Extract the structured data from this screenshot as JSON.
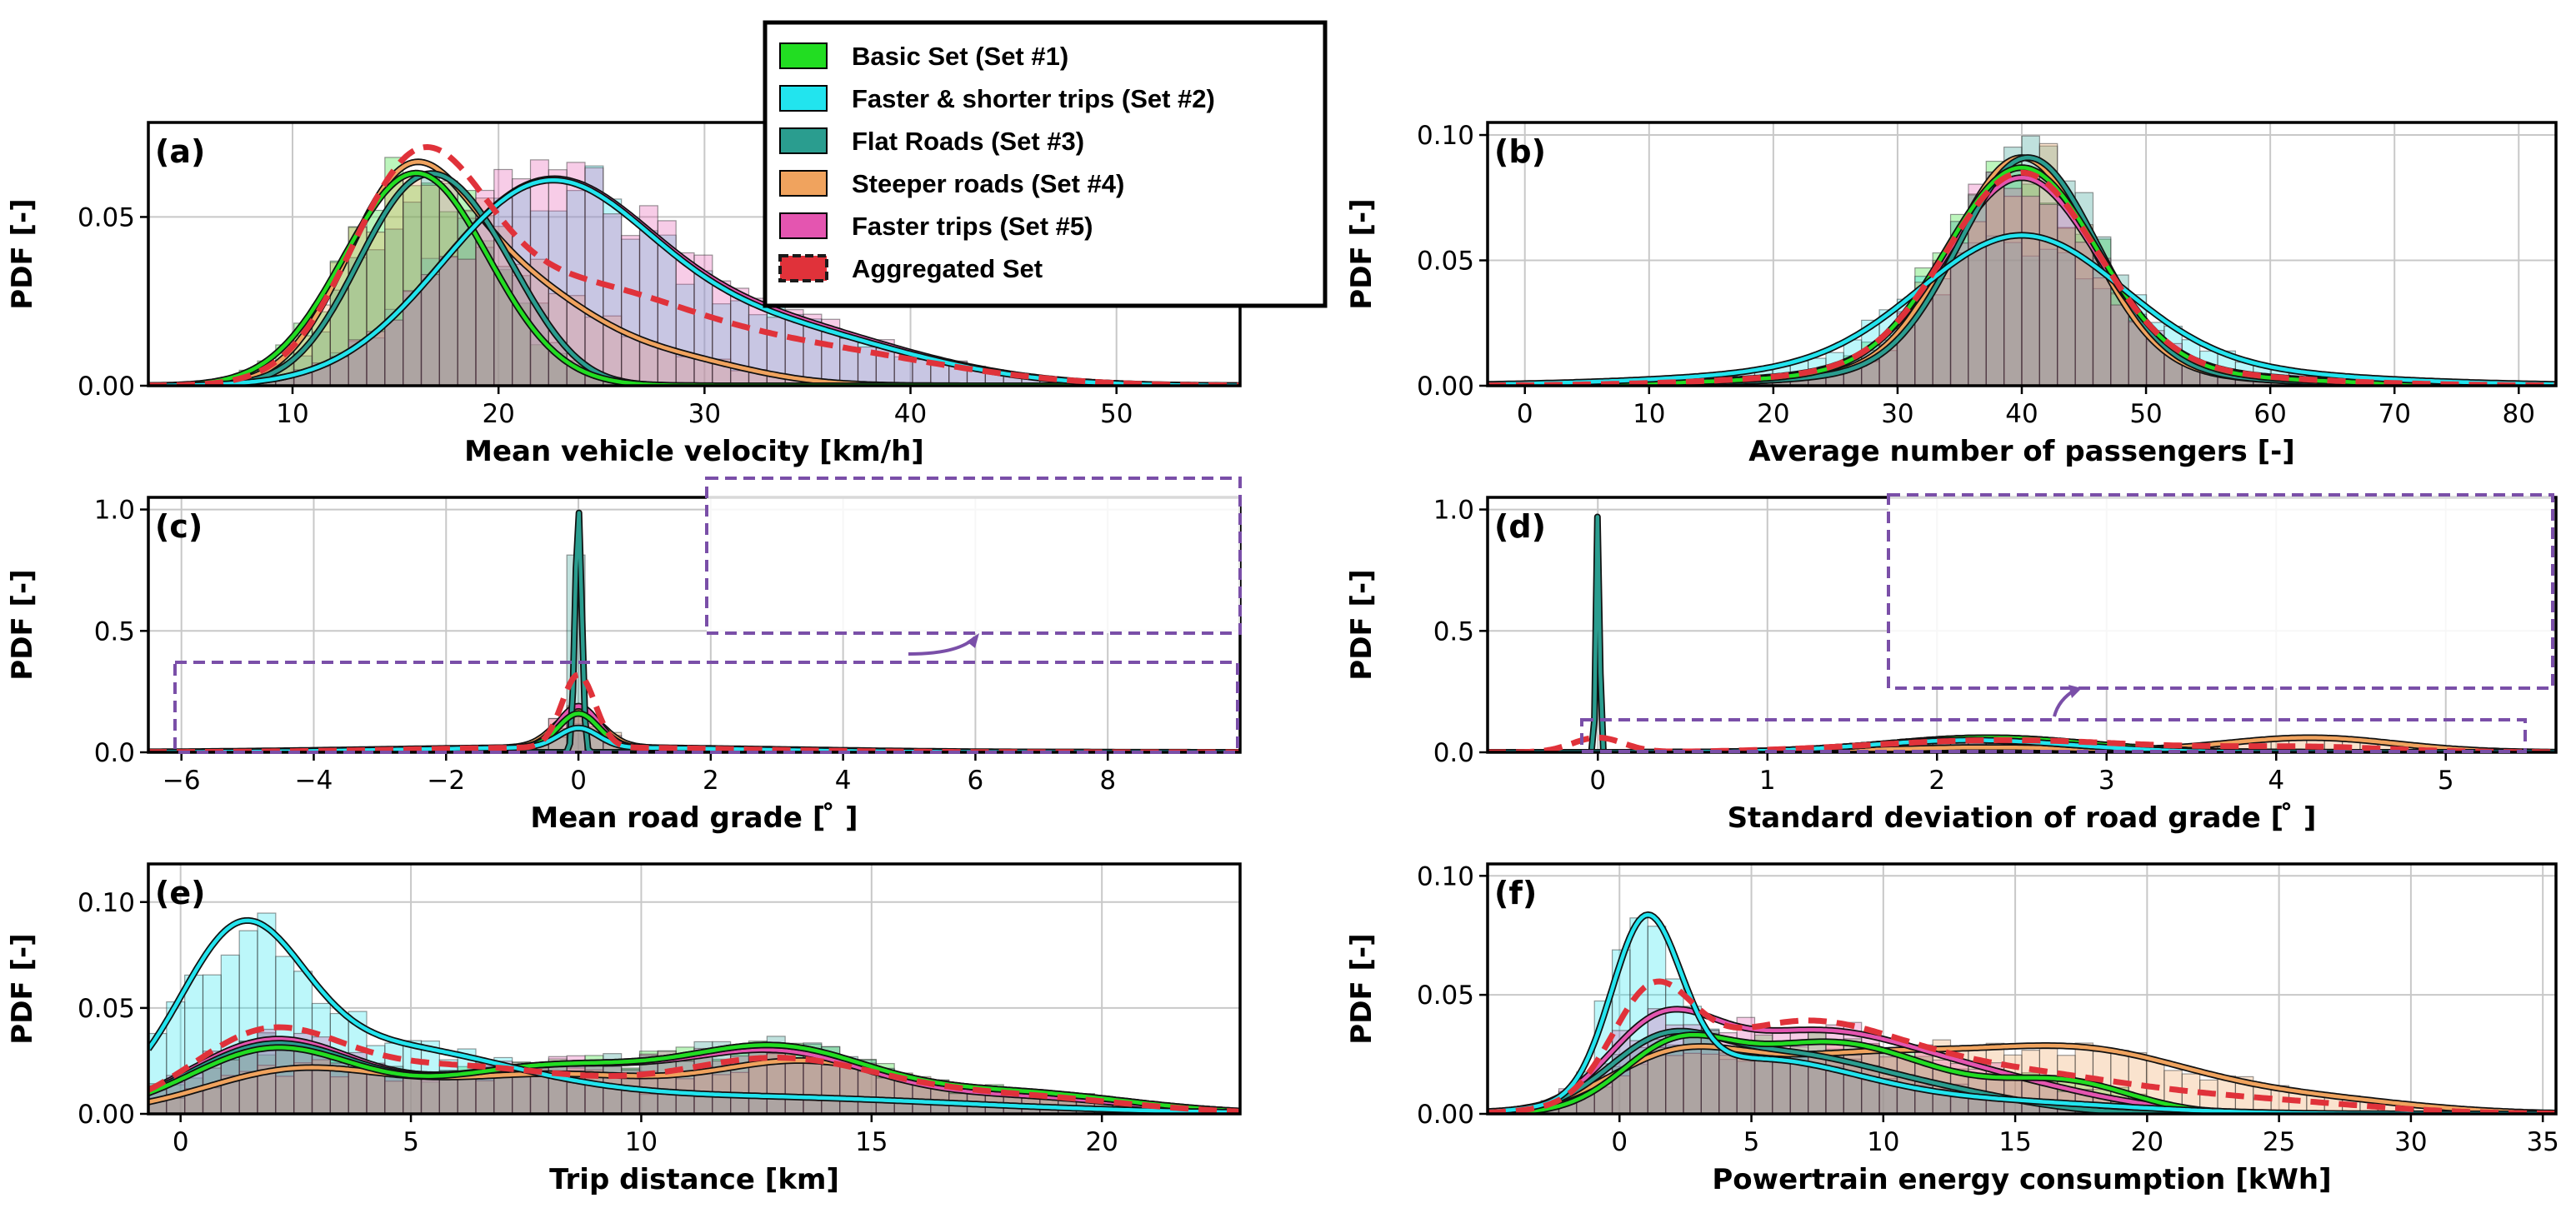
{
  "colors": {
    "set1": "#22dd22",
    "set2": "#22e4ee",
    "set3": "#2a9d8f",
    "set4": "#f0a35e",
    "set5": "#e455b0",
    "agg": "#e0323a",
    "inset": "#7a4fa8"
  },
  "legend": [
    {
      "key": "set1",
      "label": "Basic Set (Set #1)"
    },
    {
      "key": "set2",
      "label": "Faster & shorter trips (Set #2)"
    },
    {
      "key": "set3",
      "label": "Flat Roads (Set #3)"
    },
    {
      "key": "set4",
      "label": "Steeper roads (Set #4)"
    },
    {
      "key": "set5",
      "label": "Faster trips (Set #5)"
    },
    {
      "key": "agg",
      "label": "Aggregated Set"
    }
  ],
  "chart_data": [
    {
      "id": "a",
      "panel_label": "(a)",
      "type": "area",
      "xlabel": "Mean vehicle velocity [km/h]",
      "ylabel": "PDF [-]",
      "xlim": [
        3,
        56
      ],
      "ylim": [
        0,
        0.078
      ],
      "xticks": [
        10,
        20,
        30,
        40,
        50
      ],
      "xtick_labels": [
        "10",
        "20",
        "30",
        "40",
        "50"
      ],
      "yticks": [
        0,
        0.05
      ],
      "ytick_labels": [
        "0.00",
        "0.05"
      ],
      "series": [
        {
          "key": "set1",
          "name": "Basic Set (Set #1)",
          "peaks": [
            {
              "m": 16,
              "s": 3.5,
              "a": 0.063
            }
          ]
        },
        {
          "key": "set2",
          "name": "Faster & shorter trips (Set #2)",
          "peaks": [
            {
              "m": 22,
              "s": 5.0,
              "a": 0.054
            },
            {
              "m": 32,
              "s": 7.0,
              "a": 0.018
            }
          ]
        },
        {
          "key": "set3",
          "name": "Flat Roads (Set #3)",
          "peaks": [
            {
              "m": 16,
              "s": 3.0,
              "a": 0.056
            },
            {
              "m": 20,
              "s": 2.5,
              "a": 0.02
            }
          ]
        },
        {
          "key": "set4",
          "name": "Steeper roads (Set #4)",
          "peaks": [
            {
              "m": 15.5,
              "s": 3.0,
              "a": 0.058
            },
            {
              "m": 21,
              "s": 3.5,
              "a": 0.025
            },
            {
              "m": 28,
              "s": 4.0,
              "a": 0.008
            }
          ]
        },
        {
          "key": "set5",
          "name": "Faster trips (Set #5)",
          "peaks": [
            {
              "m": 22,
              "s": 5.0,
              "a": 0.054
            },
            {
              "m": 32,
              "s": 7.0,
              "a": 0.019
            }
          ]
        },
        {
          "key": "agg",
          "name": "Aggregated Set",
          "peaks": [
            {
              "m": 16,
              "s": 3.2,
              "a": 0.058
            },
            {
              "m": 23,
              "s": 5.5,
              "a": 0.026
            },
            {
              "m": 34,
              "s": 7.0,
              "a": 0.011
            }
          ]
        }
      ]
    },
    {
      "id": "b",
      "panel_label": "(b)",
      "type": "area",
      "xlabel": "Average number of passengers [-]",
      "ylabel": "PDF [-]",
      "xlim": [
        -3,
        83
      ],
      "ylim": [
        0,
        0.105
      ],
      "xticks": [
        0,
        10,
        20,
        30,
        40,
        50,
        60,
        70,
        80
      ],
      "xtick_labels": [
        "0",
        "10",
        "20",
        "30",
        "40",
        "50",
        "60",
        "70",
        "80"
      ],
      "yticks": [
        0,
        0.05,
        0.1
      ],
      "ytick_labels": [
        "0.00",
        "0.05",
        "0.10"
      ],
      "series": [
        {
          "key": "set1",
          "name": "Basic Set (Set #1)",
          "peaks": [
            {
              "m": 40,
              "s": 6,
              "a": 0.08
            },
            {
              "m": 40,
              "s": 15,
              "a": 0.007
            }
          ]
        },
        {
          "key": "set2",
          "name": "Faster & shorter trips (Set #2)",
          "peaks": [
            {
              "m": 40,
              "s": 8,
              "a": 0.05
            },
            {
              "m": 40,
              "s": 18,
              "a": 0.01
            }
          ]
        },
        {
          "key": "set3",
          "name": "Flat Roads (Set #3)",
          "peaks": [
            {
              "m": 40.5,
              "s": 5.5,
              "a": 0.085
            },
            {
              "m": 40,
              "s": 14,
              "a": 0.006
            }
          ]
        },
        {
          "key": "set4",
          "name": "Steeper roads (Set #4)",
          "peaks": [
            {
              "m": 40,
              "s": 5.5,
              "a": 0.085
            },
            {
              "m": 40,
              "s": 14,
              "a": 0.006
            }
          ]
        },
        {
          "key": "set5",
          "name": "Faster trips (Set #5)",
          "peaks": [
            {
              "m": 40,
              "s": 6,
              "a": 0.075
            },
            {
              "m": 40,
              "s": 15,
              "a": 0.008
            }
          ]
        },
        {
          "key": "agg",
          "name": "Aggregated Set",
          "peaks": [
            {
              "m": 40,
              "s": 6,
              "a": 0.077
            },
            {
              "m": 40,
              "s": 15,
              "a": 0.008
            }
          ]
        }
      ]
    },
    {
      "id": "c",
      "panel_label": "(c)",
      "type": "area",
      "xlabel": "Mean road grade [ ̊ ]",
      "ylabel": "PDF [-]",
      "xlim": [
        -6.5,
        10
      ],
      "ylim": [
        0,
        1.05
      ],
      "xticks": [
        -6,
        -4,
        -2,
        0,
        2,
        4,
        6,
        8
      ],
      "xtick_labels": [
        "−6",
        "−4",
        "−2",
        "0",
        "2",
        "4",
        "6",
        "8"
      ],
      "yticks": [
        0,
        0.5,
        1.0
      ],
      "ytick_labels": [
        "0.0",
        "0.5",
        "1.0"
      ],
      "series": [
        {
          "key": "set1",
          "name": "Basic Set (Set #1)",
          "peaks": [
            {
              "m": 0,
              "s": 0.3,
              "a": 0.14
            },
            {
              "m": 0,
              "s": 2.5,
              "a": 0.02
            }
          ]
        },
        {
          "key": "set2",
          "name": "Faster & shorter trips (Set #2)",
          "peaks": [
            {
              "m": 0,
              "s": 0.3,
              "a": 0.08
            },
            {
              "m": 0,
              "s": 2.5,
              "a": 0.02
            }
          ]
        },
        {
          "key": "set3",
          "name": "Flat Roads (Set #3)",
          "peaks": [
            {
              "m": 0,
              "s": 0.05,
              "a": 1.0
            }
          ]
        },
        {
          "key": "set4",
          "name": "Steeper roads (Set #4)",
          "peaks": [
            {
              "m": 0,
              "s": 0.35,
              "a": 0.15
            },
            {
              "m": 0,
              "s": 3.0,
              "a": 0.02
            }
          ]
        },
        {
          "key": "set5",
          "name": "Faster trips (Set #5)",
          "peaks": [
            {
              "m": 0,
              "s": 0.3,
              "a": 0.17
            },
            {
              "m": 0,
              "s": 2.5,
              "a": 0.02
            }
          ]
        },
        {
          "key": "agg",
          "name": "Aggregated Set",
          "peaks": [
            {
              "m": 0,
              "s": 0.25,
              "a": 0.3
            },
            {
              "m": 0,
              "s": 2.5,
              "a": 0.02
            }
          ]
        }
      ]
    },
    {
      "id": "d",
      "panel_label": "(d)",
      "type": "area",
      "xlabel": "Standard deviation of road grade [ ̊ ]",
      "ylabel": "PDF [-]",
      "xlim": [
        -0.65,
        5.65
      ],
      "ylim": [
        0,
        1.05
      ],
      "xticks": [
        0,
        1,
        2,
        3,
        4,
        5
      ],
      "xtick_labels": [
        "0",
        "1",
        "2",
        "3",
        "4",
        "5"
      ],
      "yticks": [
        0,
        0.5,
        1.0
      ],
      "ytick_labels": [
        "0.0",
        "0.5",
        "1.0"
      ],
      "series": [
        {
          "key": "set1",
          "name": "Basic Set (Set #1)",
          "peaks": [
            {
              "m": 2.3,
              "s": 0.6,
              "a": 0.06
            }
          ]
        },
        {
          "key": "set2",
          "name": "Faster & shorter trips (Set #2)",
          "peaks": [
            {
              "m": 2.2,
              "s": 0.6,
              "a": 0.05
            }
          ]
        },
        {
          "key": "set3",
          "name": "Flat Roads (Set #3)",
          "peaks": [
            {
              "m": 0,
              "s": 0.01,
              "a": 1.0
            },
            {
              "m": 2.2,
              "s": 0.6,
              "a": 0.05
            }
          ]
        },
        {
          "key": "set4",
          "name": "Steeper roads (Set #4)",
          "peaks": [
            {
              "m": 4.2,
              "s": 0.5,
              "a": 0.06
            },
            {
              "m": 2.3,
              "s": 0.6,
              "a": 0.02
            }
          ]
        },
        {
          "key": "set5",
          "name": "Faster trips (Set #5)",
          "peaks": [
            {
              "m": 2.3,
              "s": 0.6,
              "a": 0.06
            }
          ]
        },
        {
          "key": "agg",
          "name": "Aggregated Set",
          "peaks": [
            {
              "m": 0,
              "s": 0.15,
              "a": 0.06
            },
            {
              "m": 2.4,
              "s": 0.8,
              "a": 0.05
            },
            {
              "m": 4.2,
              "s": 0.5,
              "a": 0.02
            }
          ]
        }
      ]
    },
    {
      "id": "e",
      "panel_label": "(e)",
      "type": "area",
      "xlabel": "Trip distance [km]",
      "ylabel": "PDF [-]",
      "xlim": [
        -0.7,
        23
      ],
      "ylim": [
        0,
        0.118
      ],
      "xticks": [
        0,
        5,
        10,
        15,
        20
      ],
      "xtick_labels": [
        "0",
        "5",
        "10",
        "15",
        "20"
      ],
      "yticks": [
        0,
        0.05,
        0.1
      ],
      "ytick_labels": [
        "0.00",
        "0.05",
        "0.10"
      ],
      "series": [
        {
          "key": "set1",
          "name": "Basic Set (Set #1)",
          "peaks": [
            {
              "m": 2,
              "s": 1.8,
              "a": 0.03
            },
            {
              "m": 8,
              "s": 2.5,
              "a": 0.022
            },
            {
              "m": 13,
              "s": 2.0,
              "a": 0.028
            },
            {
              "m": 18,
              "s": 2.5,
              "a": 0.01
            }
          ]
        },
        {
          "key": "set2",
          "name": "Faster & shorter trips (Set #2)",
          "peaks": [
            {
              "m": 1.3,
              "s": 1.3,
              "a": 0.07
            },
            {
              "m": 4,
              "s": 3.0,
              "a": 0.03
            },
            {
              "m": 12,
              "s": 5.0,
              "a": 0.008
            }
          ]
        },
        {
          "key": "set3",
          "name": "Flat Roads (Set #3)",
          "peaks": [
            {
              "m": 2,
              "s": 1.8,
              "a": 0.032
            },
            {
              "m": 8,
              "s": 2.5,
              "a": 0.022
            },
            {
              "m": 13,
              "s": 2.0,
              "a": 0.028
            },
            {
              "m": 18,
              "s": 2.5,
              "a": 0.01
            }
          ]
        },
        {
          "key": "set4",
          "name": "Steeper roads (Set #4)",
          "peaks": [
            {
              "m": 2.5,
              "s": 2.0,
              "a": 0.02
            },
            {
              "m": 8,
              "s": 2.5,
              "a": 0.018
            },
            {
              "m": 13.5,
              "s": 2.0,
              "a": 0.022
            },
            {
              "m": 18,
              "s": 2.5,
              "a": 0.008
            }
          ]
        },
        {
          "key": "set5",
          "name": "Faster trips (Set #5)",
          "peaks": [
            {
              "m": 2,
              "s": 1.8,
              "a": 0.034
            },
            {
              "m": 8,
              "s": 2.5,
              "a": 0.022
            },
            {
              "m": 13,
              "s": 2.0,
              "a": 0.026
            },
            {
              "m": 18,
              "s": 2.5,
              "a": 0.008
            }
          ]
        },
        {
          "key": "agg",
          "name": "Aggregated Set",
          "peaks": [
            {
              "m": 1.8,
              "s": 1.6,
              "a": 0.032
            },
            {
              "m": 6,
              "s": 3.0,
              "a": 0.022
            },
            {
              "m": 13,
              "s": 2.2,
              "a": 0.024
            },
            {
              "m": 18,
              "s": 2.5,
              "a": 0.008
            }
          ]
        }
      ]
    },
    {
      "id": "f",
      "panel_label": "(f)",
      "type": "area",
      "xlabel": "Powertrain energy consumption [kWh]",
      "ylabel": "PDF [-]",
      "xlim": [
        -5,
        35.5
      ],
      "ylim": [
        0,
        0.105
      ],
      "xticks": [
        0,
        5,
        10,
        15,
        20,
        25,
        30,
        35
      ],
      "xtick_labels": [
        "0",
        "5",
        "10",
        "15",
        "20",
        "25",
        "30",
        "35"
      ],
      "yticks": [
        0,
        0.05,
        0.1
      ],
      "ytick_labels": [
        "0.00",
        "0.05",
        "0.10"
      ],
      "series": [
        {
          "key": "set1",
          "name": "Basic Set (Set #1)",
          "peaks": [
            {
              "m": 2,
              "s": 2.0,
              "a": 0.022
            },
            {
              "m": 8,
              "s": 4.0,
              "a": 0.03
            },
            {
              "m": 17,
              "s": 2.5,
              "a": 0.012
            }
          ]
        },
        {
          "key": "set2",
          "name": "Faster & shorter trips (Set #2)",
          "peaks": [
            {
              "m": 1,
              "s": 1.3,
              "a": 0.07
            },
            {
              "m": 5,
              "s": 4.0,
              "a": 0.022
            },
            {
              "m": 14,
              "s": 5.0,
              "a": 0.005
            }
          ]
        },
        {
          "key": "set3",
          "name": "Flat Roads (Set #3)",
          "peaks": [
            {
              "m": 1.5,
              "s": 2.0,
              "a": 0.02
            },
            {
              "m": 6,
              "s": 4.0,
              "a": 0.025
            },
            {
              "m": 13,
              "s": 3.0,
              "a": 0.005
            }
          ]
        },
        {
          "key": "set4",
          "name": "Steeper roads (Set #4)",
          "peaks": [
            {
              "m": 2,
              "s": 2.5,
              "a": 0.018
            },
            {
              "m": 9,
              "s": 5.0,
              "a": 0.024
            },
            {
              "m": 18,
              "s": 4.0,
              "a": 0.022
            },
            {
              "m": 26,
              "s": 4.0,
              "a": 0.006
            }
          ]
        },
        {
          "key": "set5",
          "name": "Faster trips (Set #5)",
          "peaks": [
            {
              "m": 1.5,
              "s": 2.0,
              "a": 0.03
            },
            {
              "m": 7,
              "s": 4.0,
              "a": 0.032
            },
            {
              "m": 14,
              "s": 4.0,
              "a": 0.012
            }
          ]
        },
        {
          "key": "agg",
          "name": "Aggregated Set",
          "peaks": [
            {
              "m": 1.2,
              "s": 1.5,
              "a": 0.04
            },
            {
              "m": 6.5,
              "s": 4.0,
              "a": 0.035
            },
            {
              "m": 15,
              "s": 5.0,
              "a": 0.016
            },
            {
              "m": 25,
              "s": 4.0,
              "a": 0.004
            }
          ]
        }
      ]
    }
  ]
}
